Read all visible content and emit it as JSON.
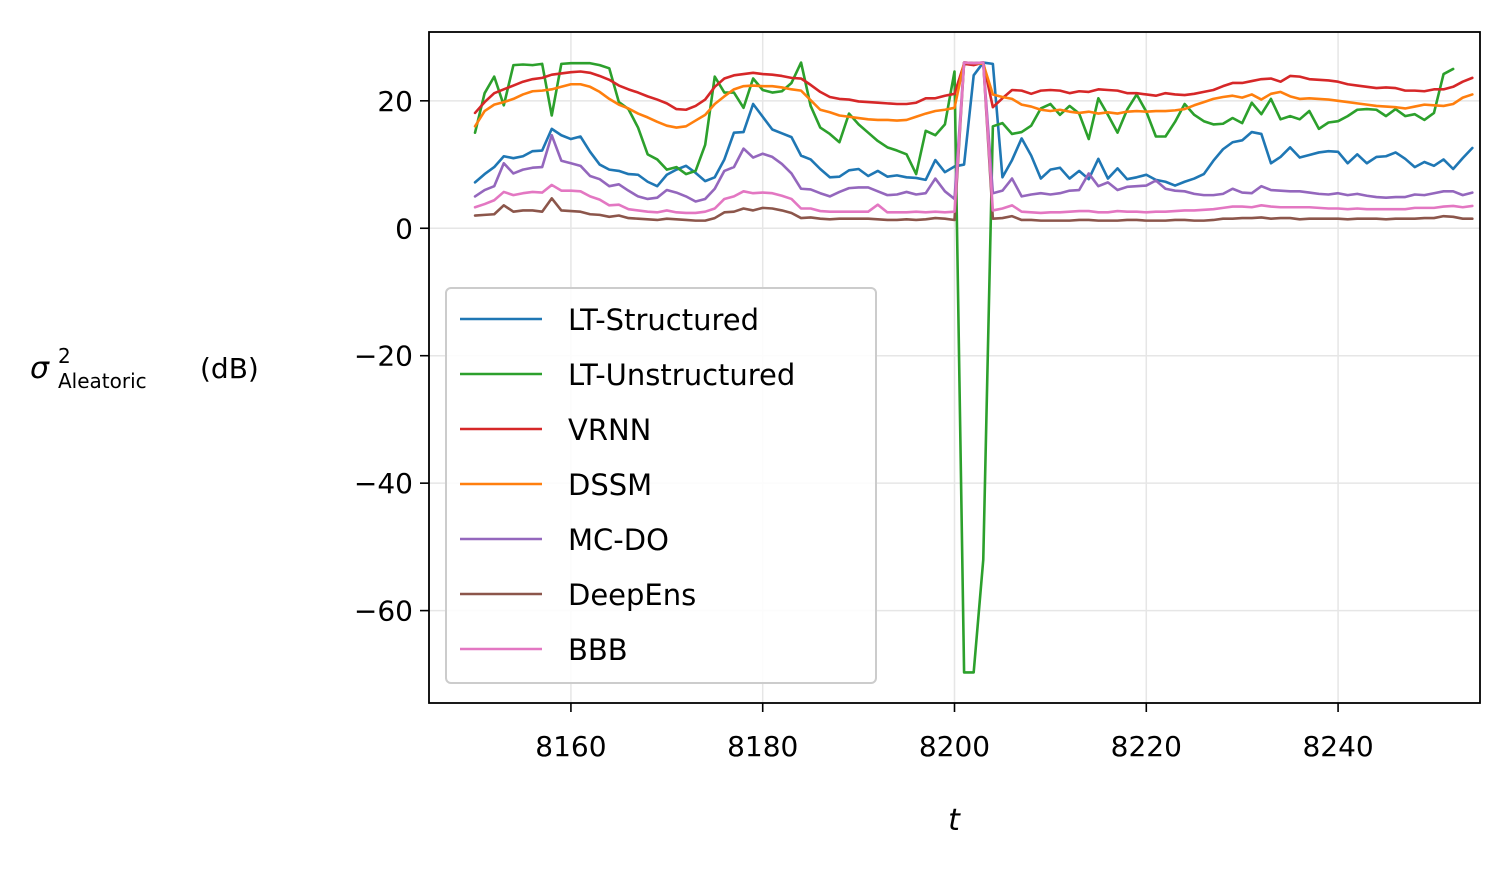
{
  "chart_data": {
    "type": "line",
    "title": "",
    "xlabel": "t",
    "ylabel": {
      "symbol": "σ",
      "superscript": "2",
      "subscript": "Aleatoric",
      "unit": "(dB)"
    },
    "xlim": [
      8145.2,
      8254.8
    ],
    "ylim": [
      -74.5,
      30.8
    ],
    "xticks": [
      8160,
      8180,
      8200,
      8220,
      8240
    ],
    "xtick_labels": [
      "8160",
      "8180",
      "8200",
      "8220",
      "8240"
    ],
    "yticks": [
      20,
      0,
      -20,
      -40,
      -60
    ],
    "ytick_labels": [
      "20",
      "0",
      "−20",
      "−40",
      "−60"
    ],
    "grid": true,
    "legend_position": "lower-left",
    "x_start": 8150,
    "x_step": 1,
    "series": [
      {
        "name": "LT-Structured",
        "color": "#1f77b4",
        "values": [
          7.2,
          8.5,
          9.6,
          11.3,
          11.0,
          11.3,
          12.1,
          12.2,
          15.6,
          14.6,
          14.0,
          14.4,
          12.0,
          10.0,
          9.2,
          9.0,
          8.5,
          8.4,
          7.3,
          6.6,
          8.4,
          9.2,
          9.8,
          8.7,
          7.4,
          8.0,
          10.8,
          15.0,
          15.1,
          19.5,
          17.5,
          15.5,
          14.9,
          14.3,
          11.4,
          10.8,
          9.3,
          8.0,
          8.1,
          9.1,
          9.3,
          8.2,
          9.0,
          8.1,
          8.3,
          8.0,
          7.9,
          7.6,
          10.7,
          8.8,
          9.7,
          10.0,
          24.0,
          26.0,
          25.8,
          8.0,
          10.7,
          14.1,
          11.4,
          7.8,
          9.2,
          9.5,
          7.8,
          9.0,
          7.7,
          10.9,
          7.8,
          9.4,
          7.7,
          8.0,
          8.4,
          7.6,
          7.3,
          6.7,
          7.3,
          7.8,
          8.5,
          10.6,
          12.4,
          13.5,
          13.8,
          15.1,
          14.8,
          10.2,
          11.2,
          12.7,
          11.1,
          11.5,
          11.9,
          12.1,
          12.0,
          10.2,
          11.6,
          10.2,
          11.2,
          11.3,
          11.9,
          10.9,
          9.6,
          10.4,
          9.8,
          10.8,
          9.3,
          11.0,
          12.6
        ]
      },
      {
        "name": "LT-Unstructured",
        "color": "#2ca02c",
        "values": [
          15.0,
          21.2,
          23.8,
          19.3,
          25.6,
          25.7,
          25.6,
          25.8,
          17.7,
          25.8,
          25.9,
          25.9,
          25.9,
          25.6,
          25.1,
          19.8,
          18.7,
          15.8,
          11.6,
          10.8,
          9.2,
          9.6,
          8.5,
          9.0,
          13.1,
          23.8,
          21.3,
          21.3,
          18.9,
          23.5,
          21.7,
          21.3,
          21.5,
          22.8,
          26.0,
          19.2,
          15.8,
          14.8,
          13.5,
          18.0,
          16.3,
          15.0,
          13.7,
          12.7,
          12.2,
          11.6,
          8.5,
          15.3,
          14.6,
          16.3,
          24.6,
          -69.7,
          -69.7,
          -52.0,
          16.0,
          16.5,
          14.8,
          15.1,
          16.1,
          18.8,
          19.5,
          17.8,
          19.2,
          18.0,
          14.0,
          20.4,
          17.8,
          15.0,
          18.6,
          21.0,
          18.3,
          14.4,
          14.4,
          16.7,
          19.5,
          17.8,
          16.8,
          16.3,
          16.4,
          17.3,
          16.5,
          19.7,
          17.9,
          20.3,
          17.1,
          17.6,
          17.1,
          18.4,
          15.6,
          16.6,
          16.8,
          17.6,
          18.6,
          18.7,
          18.6,
          17.6,
          18.7,
          17.6,
          17.9,
          17.0,
          18.1,
          24.2,
          25.0
        ]
      },
      {
        "name": "VRNN",
        "color": "#d62728",
        "values": [
          18.1,
          19.8,
          21.2,
          21.8,
          22.4,
          23.0,
          23.4,
          23.6,
          24.1,
          24.3,
          24.5,
          24.6,
          24.4,
          23.9,
          23.3,
          22.4,
          21.8,
          21.3,
          20.7,
          20.2,
          19.6,
          18.7,
          18.6,
          19.2,
          20.2,
          22.2,
          23.5,
          24.0,
          24.2,
          24.4,
          24.2,
          24.1,
          23.9,
          23.6,
          23.5,
          22.5,
          21.4,
          20.6,
          20.3,
          20.2,
          19.9,
          19.8,
          19.7,
          19.6,
          19.5,
          19.5,
          19.7,
          20.4,
          20.4,
          20.8,
          21.1,
          25.8,
          25.6,
          26.0,
          19.0,
          20.4,
          21.7,
          21.6,
          21.1,
          21.6,
          21.7,
          21.6,
          21.2,
          21.5,
          21.4,
          21.8,
          21.7,
          21.6,
          21.2,
          21.2,
          21.0,
          20.8,
          21.2,
          21.0,
          20.9,
          21.1,
          21.4,
          21.7,
          22.3,
          22.8,
          22.8,
          23.1,
          23.4,
          23.5,
          23.0,
          23.9,
          23.8,
          23.4,
          23.3,
          23.2,
          23.0,
          22.6,
          22.4,
          22.2,
          22.0,
          22.1,
          22.0,
          21.6,
          21.6,
          21.5,
          21.8,
          21.8,
          22.2,
          23.0,
          23.6
        ]
      },
      {
        "name": "DSSM",
        "color": "#ff7f0e",
        "values": [
          16.0,
          18.4,
          19.4,
          19.8,
          20.3,
          21.0,
          21.5,
          21.6,
          21.8,
          22.2,
          22.6,
          22.6,
          22.2,
          21.4,
          20.3,
          19.4,
          18.8,
          18.0,
          17.4,
          16.7,
          16.1,
          15.8,
          16.0,
          16.9,
          17.8,
          19.5,
          20.7,
          21.8,
          22.3,
          22.4,
          22.3,
          22.3,
          22.1,
          21.8,
          21.6,
          20.1,
          18.6,
          18.2,
          17.7,
          17.5,
          17.3,
          17.1,
          17.0,
          17.0,
          16.9,
          17.0,
          17.5,
          18.0,
          18.4,
          18.6,
          18.9,
          26.0,
          25.9,
          25.8,
          21.0,
          20.6,
          20.3,
          19.4,
          19.1,
          18.6,
          18.4,
          18.6,
          18.3,
          18.1,
          18.3,
          18.0,
          18.2,
          18.0,
          18.3,
          18.4,
          18.3,
          18.4,
          18.4,
          18.5,
          18.7,
          19.3,
          19.8,
          20.3,
          20.6,
          20.8,
          20.5,
          21.0,
          20.2,
          21.1,
          21.4,
          20.7,
          20.3,
          20.4,
          20.3,
          20.2,
          20.0,
          19.8,
          19.6,
          19.4,
          19.2,
          19.1,
          19.0,
          18.8,
          19.1,
          19.4,
          19.3,
          19.2,
          19.5,
          20.5,
          21.0
        ]
      },
      {
        "name": "MC-DO",
        "color": "#9467bd",
        "values": [
          5.0,
          6.0,
          6.6,
          10.2,
          8.6,
          9.2,
          9.5,
          9.6,
          14.6,
          10.6,
          10.2,
          9.8,
          8.2,
          7.7,
          6.6,
          6.9,
          5.9,
          5.0,
          4.6,
          4.8,
          6.0,
          5.6,
          5.0,
          4.2,
          4.6,
          6.2,
          9.0,
          9.6,
          12.5,
          11.1,
          11.7,
          11.2,
          10.1,
          8.6,
          6.2,
          6.1,
          5.5,
          5.0,
          5.7,
          6.3,
          6.4,
          6.4,
          5.8,
          5.2,
          5.3,
          5.7,
          5.3,
          5.5,
          7.8,
          5.8,
          4.6,
          26.0,
          25.9,
          26.0,
          5.5,
          5.9,
          7.8,
          5.0,
          5.3,
          5.5,
          5.3,
          5.5,
          5.9,
          6.0,
          8.6,
          6.6,
          7.2,
          6.0,
          6.5,
          6.6,
          6.7,
          7.5,
          6.2,
          5.9,
          5.8,
          5.4,
          5.2,
          5.2,
          5.4,
          6.2,
          5.6,
          5.5,
          6.6,
          6.0,
          5.9,
          5.8,
          5.8,
          5.6,
          5.4,
          5.3,
          5.5,
          5.2,
          5.4,
          5.1,
          4.9,
          4.8,
          4.9,
          4.9,
          5.3,
          5.2,
          5.5,
          5.8,
          5.8,
          5.2,
          5.6
        ]
      },
      {
        "name": "DeepEns",
        "color": "#8c564b",
        "values": [
          2.0,
          2.1,
          2.2,
          3.6,
          2.6,
          2.8,
          2.8,
          2.6,
          4.7,
          2.8,
          2.7,
          2.6,
          2.2,
          2.1,
          1.8,
          2.0,
          1.6,
          1.5,
          1.4,
          1.3,
          1.5,
          1.4,
          1.3,
          1.2,
          1.2,
          1.6,
          2.5,
          2.6,
          3.1,
          2.8,
          3.2,
          3.1,
          2.8,
          2.4,
          1.6,
          1.7,
          1.5,
          1.4,
          1.5,
          1.5,
          1.5,
          1.5,
          1.4,
          1.3,
          1.3,
          1.4,
          1.3,
          1.4,
          1.6,
          1.5,
          1.3,
          26.0,
          25.9,
          26.0,
          1.5,
          1.6,
          1.9,
          1.3,
          1.3,
          1.2,
          1.2,
          1.2,
          1.2,
          1.3,
          1.3,
          1.2,
          1.2,
          1.2,
          1.3,
          1.3,
          1.2,
          1.2,
          1.2,
          1.3,
          1.3,
          1.2,
          1.2,
          1.3,
          1.5,
          1.5,
          1.6,
          1.6,
          1.7,
          1.5,
          1.6,
          1.6,
          1.4,
          1.5,
          1.5,
          1.5,
          1.5,
          1.4,
          1.5,
          1.5,
          1.5,
          1.4,
          1.5,
          1.5,
          1.5,
          1.6,
          1.6,
          1.9,
          1.8,
          1.5,
          1.5
        ]
      },
      {
        "name": "BBB",
        "color": "#e377c2",
        "values": [
          3.3,
          3.8,
          4.4,
          5.7,
          5.2,
          5.5,
          5.7,
          5.6,
          6.8,
          5.9,
          5.9,
          5.8,
          5.0,
          4.5,
          3.6,
          3.7,
          3.0,
          2.8,
          2.6,
          2.5,
          2.8,
          2.5,
          2.4,
          2.4,
          2.6,
          3.1,
          4.6,
          5.0,
          5.8,
          5.5,
          5.6,
          5.5,
          5.1,
          4.6,
          3.1,
          3.1,
          2.7,
          2.6,
          2.6,
          2.6,
          2.6,
          2.6,
          3.7,
          2.5,
          2.5,
          2.5,
          2.6,
          2.5,
          2.6,
          2.5,
          2.6,
          26.0,
          25.9,
          26.0,
          2.8,
          3.1,
          3.6,
          2.6,
          2.5,
          2.4,
          2.5,
          2.5,
          2.6,
          2.7,
          2.7,
          2.5,
          2.5,
          2.7,
          2.6,
          2.6,
          2.5,
          2.6,
          2.6,
          2.7,
          2.8,
          2.8,
          2.9,
          3.0,
          3.2,
          3.4,
          3.4,
          3.3,
          3.6,
          3.4,
          3.3,
          3.3,
          3.3,
          3.3,
          3.2,
          3.1,
          3.1,
          3.0,
          3.1,
          3.0,
          3.0,
          3.0,
          3.0,
          3.0,
          3.2,
          3.2,
          3.2,
          3.4,
          3.5,
          3.3,
          3.5
        ]
      }
    ]
  }
}
